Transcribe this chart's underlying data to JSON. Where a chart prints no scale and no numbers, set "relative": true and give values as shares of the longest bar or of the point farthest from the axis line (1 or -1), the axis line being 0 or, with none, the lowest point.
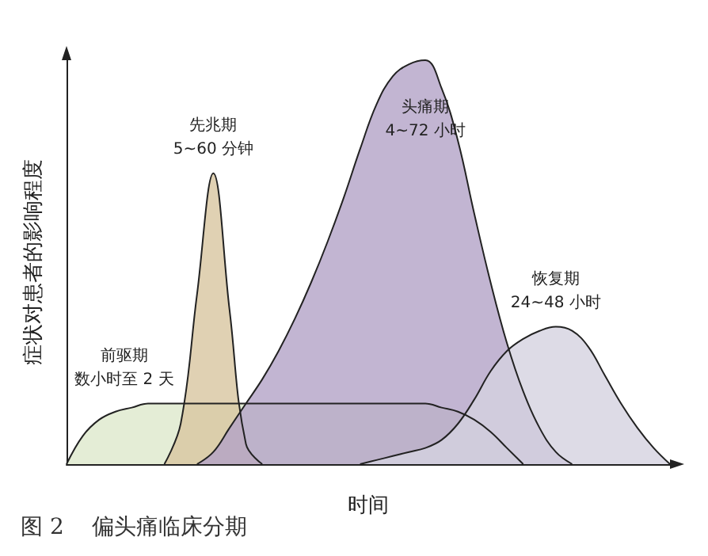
{
  "chart_data": {
    "type": "area",
    "relative": true,
    "title": "图 2    偏头痛临床分期",
    "xlabel": "时间",
    "ylabel": "症状对患者的影响程度",
    "categories": [
      null,
      null,
      null,
      null,
      null,
      null,
      null,
      null,
      null,
      null,
      null,
      null,
      null,
      null,
      null,
      null,
      null,
      null,
      null,
      null,
      null,
      null,
      null,
      null,
      null,
      null,
      null,
      null,
      null,
      null,
      null,
      null,
      null,
      null,
      null,
      null,
      null,
      null
    ],
    "annotations": [
      "前驱期",
      "数小时至 2 天",
      "先兆期",
      "5~60 分钟",
      "头痛期",
      "4~72 小时",
      "恢复期",
      "24~48 小时"
    ],
    "series": [
      {
        "color": "#dde8cc",
        "values": [
          0,
          0.07,
          0.11,
          0.13,
          0.14,
          0.15,
          0.15,
          0.15,
          0.15,
          0.15,
          0.15,
          0.15,
          0.15,
          0.15,
          0.15,
          0.15,
          0.15,
          0.15,
          0.15,
          0.15,
          0.15,
          0.15,
          0.15,
          0.14,
          0.13,
          0.11,
          0.08,
          0.04,
          0,
          null,
          null,
          null,
          null,
          null,
          null,
          null,
          null,
          null
        ]
      },
      {
        "color": "#d8c6a0",
        "values": [
          null,
          null,
          null,
          null,
          null,
          null,
          0,
          0.1,
          0.42,
          0.72,
          0.38,
          0.05,
          0,
          null,
          null,
          null,
          null,
          null,
          null,
          null,
          null,
          null,
          null,
          null,
          null,
          null,
          null,
          null,
          null,
          null,
          null,
          null,
          null,
          null,
          null,
          null,
          null,
          null
        ]
      },
      {
        "color": "#b3a3c7",
        "values": [
          null,
          null,
          null,
          null,
          null,
          null,
          null,
          null,
          0,
          0.03,
          0.09,
          0.15,
          0.21,
          0.28,
          0.36,
          0.45,
          0.55,
          0.66,
          0.78,
          0.89,
          0.96,
          0.99,
          1,
          0.93,
          0.8,
          0.62,
          0.45,
          0.3,
          0.18,
          0.09,
          0.03,
          0,
          null,
          null,
          null,
          null,
          null,
          null
        ]
      },
      {
        "color": "#d4d2e0",
        "values": [
          null,
          null,
          null,
          null,
          null,
          null,
          null,
          null,
          null,
          null,
          null,
          null,
          null,
          null,
          null,
          null,
          null,
          null,
          0,
          0.01,
          0.02,
          0.03,
          0.04,
          0.06,
          0.1,
          0.16,
          0.23,
          0.28,
          0.31,
          0.33,
          0.34,
          0.33,
          0.29,
          0.22,
          0.15,
          0.09,
          0.04,
          0
        ]
      }
    ]
  }
}
